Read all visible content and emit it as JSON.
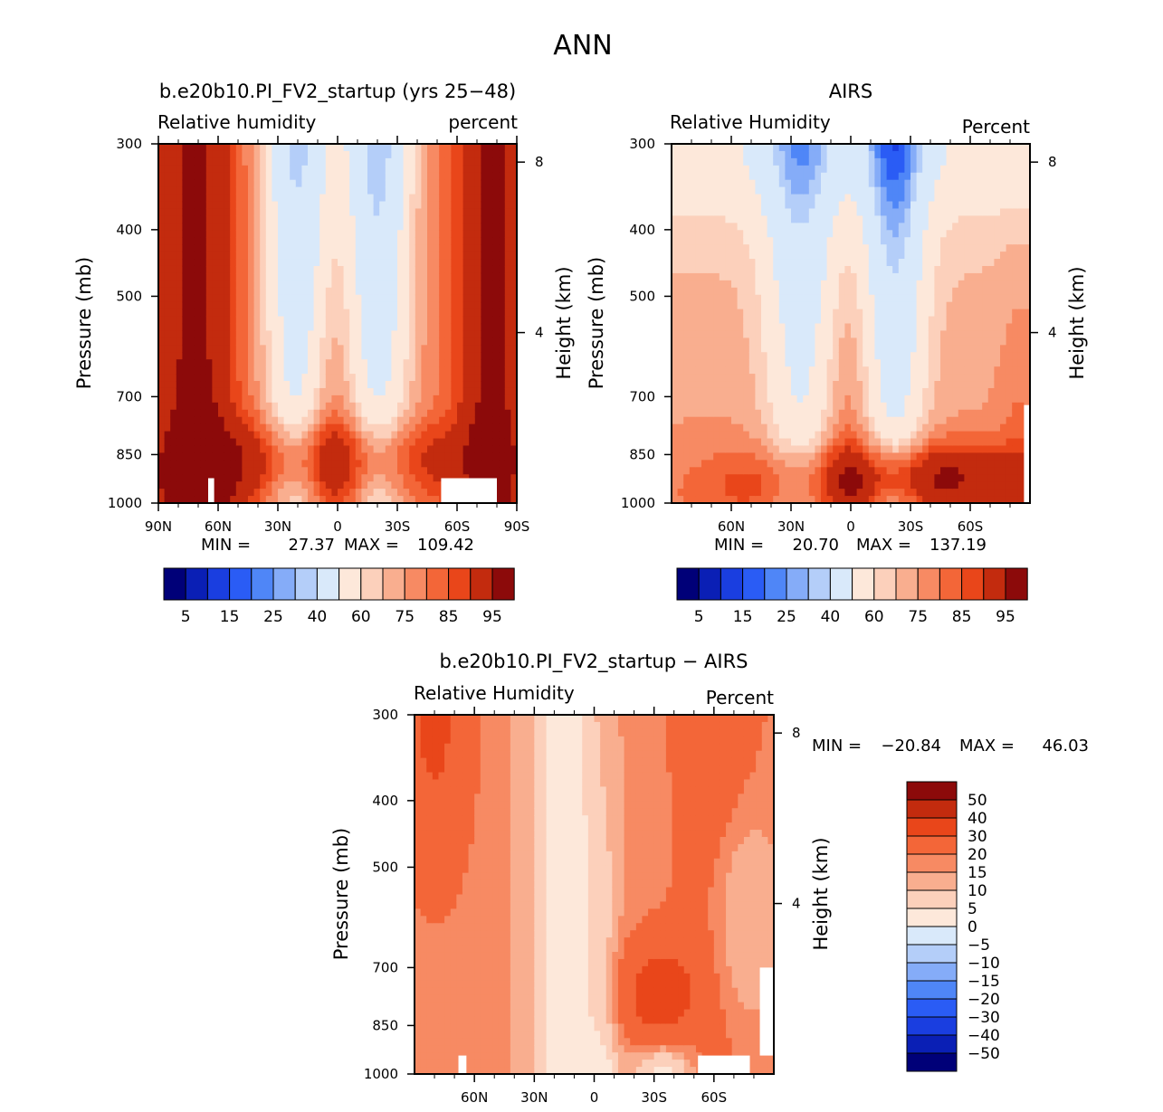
{
  "figure": {
    "title": "ANN"
  },
  "colors": {
    "scale": [
      "#000078",
      "#0a1fb5",
      "#1a3ee0",
      "#2a5cf5",
      "#4f86f7",
      "#85acf8",
      "#b4cef9",
      "#d9e9fa",
      "#fde8da",
      "#fcd0bb",
      "#f9ae8f",
      "#f78a63",
      "#f36638",
      "#e9461a",
      "#c32b0e",
      "#8c0a0a"
    ],
    "missing": "#ffffff"
  },
  "chart_data": [
    {
      "type": "heatmap",
      "title": "b.e20b10.PI_FV2_startup (yrs 25−48)",
      "left_subtitle": "Relative humidity",
      "right_subtitle": "percent",
      "ylabel": "Pressure (mb)",
      "y2label": "Height (km)",
      "x_ticks": [
        "90N",
        "60N",
        "30N",
        "0",
        "30S",
        "60S",
        "90S"
      ],
      "x_ticks_lat": [
        90,
        60,
        30,
        0,
        -30,
        -60,
        -90
      ],
      "y_ticks": [
        "300",
        "400",
        "500",
        "700",
        "850",
        "1000"
      ],
      "y_ticks_p": [
        300,
        400,
        500,
        700,
        850,
        1000
      ],
      "y2_ticks": [
        "8",
        "4"
      ],
      "y2_ticks_km": [
        8,
        4
      ],
      "stats": {
        "min_label": "MIN =",
        "min": "27.37",
        "max_label": "MAX =",
        "max": "109.42"
      },
      "colorbar": {
        "orientation": "horizontal",
        "labels": [
          "5",
          "15",
          "25",
          "40",
          "60",
          "75",
          "85",
          "95"
        ]
      },
      "xlim": [
        90,
        -90
      ],
      "ylim": [
        300,
        1000
      ],
      "field": "model"
    },
    {
      "type": "heatmap",
      "title": "AIRS",
      "left_subtitle": "Relative Humidity",
      "right_subtitle": "Percent",
      "ylabel": "Pressure (mb)",
      "y2label": "Height (km)",
      "x_ticks": [
        "60N",
        "30N",
        "0",
        "30S",
        "60S"
      ],
      "x_ticks_lat": [
        60,
        30,
        0,
        -30,
        -60
      ],
      "y_ticks": [
        "300",
        "400",
        "500",
        "700",
        "850",
        "1000"
      ],
      "y_ticks_p": [
        300,
        400,
        500,
        700,
        850,
        1000
      ],
      "y2_ticks": [
        "8",
        "4"
      ],
      "y2_ticks_km": [
        8,
        4
      ],
      "stats": {
        "min_label": "MIN =",
        "min": "20.70",
        "max_label": "MAX =",
        "max": "137.19"
      },
      "colorbar": {
        "orientation": "horizontal",
        "labels": [
          "5",
          "15",
          "25",
          "40",
          "60",
          "75",
          "85",
          "95"
        ]
      },
      "xlim": [
        90,
        -90
      ],
      "ylim": [
        300,
        1000
      ],
      "field": "obs"
    },
    {
      "type": "heatmap",
      "title": "b.e20b10.PI_FV2_startup − AIRS",
      "left_subtitle": "Relative Humidity",
      "right_subtitle": "Percent",
      "ylabel": "Pressure (mb)",
      "y2label": "Height (km)",
      "x_ticks": [
        "60N",
        "30N",
        "0",
        "30S",
        "60S"
      ],
      "x_ticks_lat": [
        60,
        30,
        0,
        -30,
        -60
      ],
      "y_ticks": [
        "300",
        "400",
        "500",
        "700",
        "850",
        "1000"
      ],
      "y_ticks_p": [
        300,
        400,
        500,
        700,
        850,
        1000
      ],
      "y2_ticks": [
        "8",
        "4"
      ],
      "y2_ticks_km": [
        8,
        4
      ],
      "stats": {
        "min_label": "MIN =",
        "min": "−20.84",
        "max_label": "MAX =",
        "max": "46.03"
      },
      "colorbar": {
        "orientation": "vertical",
        "labels": [
          "50",
          "40",
          "30",
          "20",
          "15",
          "10",
          "5",
          "0",
          "−5",
          "−10",
          "−15",
          "−20",
          "−30",
          "−40",
          "−50"
        ]
      },
      "xlim": [
        90,
        -90
      ],
      "ylim": [
        300,
        1000
      ],
      "field": "diff"
    }
  ]
}
